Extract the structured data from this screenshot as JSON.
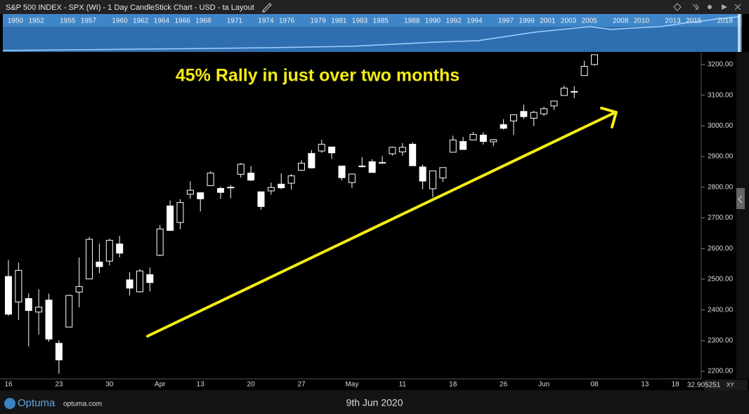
{
  "chart_data": {
    "type": "candlestick",
    "title": "S&P 500 INDEX - SPX (WI) - 1 Day CandleStick Chart - USD - ta Layout",
    "annotation": "45% Rally in just over two months",
    "annotation_color": "#f5ec13",
    "date_label": "9th Jun 2020",
    "brand": "Optuma",
    "brand_url": "optuma.com",
    "scale_value": "32.905251",
    "scale_mode": "XY",
    "overview_years": [
      1950,
      1952,
      1955,
      1957,
      1960,
      1962,
      1964,
      1966,
      1968,
      1971,
      1974,
      1976,
      1979,
      1981,
      1983,
      1985,
      1988,
      1990,
      1992,
      1994,
      1997,
      1999,
      2001,
      2003,
      2005,
      2008,
      2010,
      2013,
      2015,
      2018
    ],
    "categories": [
      "16",
      null,
      null,
      null,
      null,
      "23",
      null,
      null,
      null,
      null,
      "30",
      null,
      null,
      null,
      null,
      "Apr",
      null,
      null,
      null,
      "13",
      null,
      null,
      null,
      null,
      "20",
      null,
      null,
      null,
      null,
      "27",
      null,
      null,
      null,
      null,
      "May",
      null,
      null,
      null,
      null,
      "11",
      null,
      null,
      null,
      null,
      "18",
      null,
      null,
      null,
      null,
      "26",
      null,
      null,
      null,
      "Jun",
      null,
      null,
      null,
      null,
      "08",
      null,
      null,
      null,
      null,
      "13",
      null,
      null,
      "18",
      null,
      null
    ],
    "open": [
      2509,
      2426,
      2437,
      2393,
      2432,
      2291,
      2344,
      2458,
      2501,
      2556,
      2559,
      2615,
      2498,
      2459,
      2515,
      2578,
      2739,
      2685,
      2777,
      2782,
      2805,
      2796,
      2799,
      2842,
      2846,
      2785,
      2788,
      2810,
      2813,
      2855,
      2910,
      2918,
      2931,
      2869,
      2815,
      2869,
      2883,
      2878,
      2909,
      2915,
      2940,
      2866,
      2795,
      2830,
      2914,
      2949,
      2954,
      2970,
      2948,
      3004,
      3016,
      3047,
      3025,
      3039,
      3065,
      3099,
      3112,
      3164,
      3200,
      null,
      null,
      null,
      null,
      null,
      null,
      null,
      null,
      null,
      null
    ],
    "high": [
      2563,
      2554,
      2454,
      2467,
      2453,
      2301,
      2450,
      2571,
      2637,
      2616,
      2632,
      2641,
      2523,
      2533,
      2538,
      2677,
      2757,
      2761,
      2819,
      2782,
      2852,
      2802,
      2807,
      2879,
      2869,
      2786,
      2815,
      2845,
      2843,
      2888,
      2921,
      2955,
      2931,
      2869,
      2844,
      2898,
      2891,
      2902,
      2932,
      2944,
      2946,
      2874,
      2853,
      2865,
      2968,
      2964,
      2980,
      2979,
      2957,
      3022,
      3036,
      3069,
      3049,
      3062,
      3081,
      3131,
      3129,
      3212,
      3233,
      null,
      null,
      null,
      null,
      null,
      null,
      null,
      null,
      null,
      null
    ],
    "low": [
      2381,
      2367,
      2281,
      2320,
      2296,
      2192,
      2344,
      2408,
      2501,
      2520,
      2545,
      2571,
      2447,
      2456,
      2460,
      2575,
      2658,
      2663,
      2762,
      2721,
      2805,
      2762,
      2764,
      2831,
      2820,
      2727,
      2776,
      2794,
      2792,
      2853,
      2861,
      2912,
      2892,
      2822,
      2798,
      2864,
      2848,
      2876,
      2903,
      2903,
      2870,
      2793,
      2767,
      2817,
      2914,
      2922,
      2954,
      2939,
      2934,
      2988,
      2970,
      3023,
      2999,
      3032,
      3052,
      3099,
      3090,
      3164,
      3196,
      null,
      null,
      null,
      null,
      null,
      null,
      null,
      null,
      null,
      null
    ],
    "close": [
      2386,
      2529,
      2398,
      2409,
      2305,
      2237,
      2447,
      2476,
      2630,
      2541,
      2627,
      2585,
      2471,
      2527,
      2489,
      2664,
      2659,
      2750,
      2790,
      2762,
      2846,
      2783,
      2800,
      2875,
      2823,
      2737,
      2799,
      2798,
      2837,
      2878,
      2863,
      2940,
      2912,
      2831,
      2843,
      2868,
      2848,
      2881,
      2930,
      2930,
      2870,
      2820,
      2853,
      2864,
      2954,
      2923,
      2972,
      2949,
      2955,
      2992,
      3036,
      3030,
      3044,
      3056,
      3081,
      3123,
      3112,
      3194,
      3232,
      null,
      null,
      null,
      null,
      null,
      null,
      null,
      null,
      null,
      null
    ],
    "color": "#ffffff",
    "ylim": [
      2175,
      3241
    ],
    "yticks": [
      {
        "value": 2200,
        "label": "2200.00"
      },
      {
        "value": 2300,
        "label": "2300.00"
      },
      {
        "value": 2400,
        "label": "2400.00"
      },
      {
        "value": 2500,
        "label": "2500.00"
      },
      {
        "value": 2600,
        "label": "2600.00"
      },
      {
        "value": 2700,
        "label": "2700.00"
      },
      {
        "value": 2800,
        "label": "2800.00"
      },
      {
        "value": 2900,
        "label": "2900.00"
      },
      {
        "value": 3000,
        "label": "3000.00"
      },
      {
        "value": 3100,
        "label": "3100.00"
      },
      {
        "value": 3200,
        "label": "3200.00"
      }
    ],
    "grid": false
  }
}
